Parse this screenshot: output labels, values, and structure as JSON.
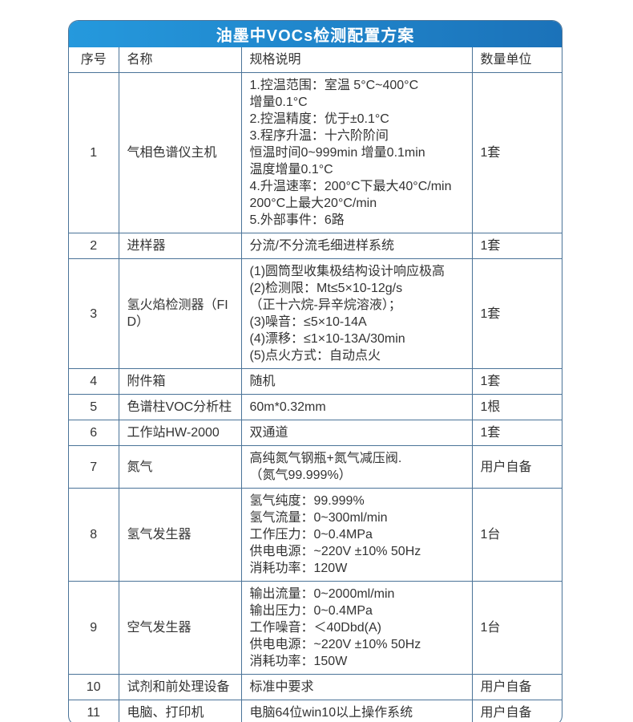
{
  "title": "油墨中VOCs检测配置方案",
  "columns": [
    "序号",
    "名称",
    "规格说明",
    "数量单位"
  ],
  "rows": [
    {
      "no": "1",
      "name": "气相色谱仪主机",
      "spec": [
        "1.控温范围：室温 5°C~400°C",
        "增量0.1°C",
        "2.控温精度：优于±0.1°C",
        "3.程序升温：十六阶阶间",
        "恒温时间0~999min 增量0.1min",
        "温度增量0.1°C",
        "4.升温速率：200°C下最大40°C/min",
        "200°C上最大20°C/min",
        "5.外部事件：6路"
      ],
      "qty": "1套"
    },
    {
      "no": "2",
      "name": "进样器",
      "spec": [
        "分流/不分流毛细进样系统"
      ],
      "qty": "1套"
    },
    {
      "no": "3",
      "name": "氢火焰检测器（FID）",
      "spec": [
        "(1)圆筒型收集极结构设计响应极高",
        "(2)检测限：Mt≤5×10-12g/s",
        "（正十六烷-异辛烷溶液）；",
        "(3)噪音：≤5×10-14A",
        "(4)漂移：≤1×10-13A/30min",
        "(5)点火方式：自动点火"
      ],
      "qty": "1套"
    },
    {
      "no": "4",
      "name": "附件箱",
      "spec": [
        "随机"
      ],
      "qty": "1套"
    },
    {
      "no": "5",
      "name": "色谱柱VOC分析柱",
      "spec": [
        "60m*0.32mm"
      ],
      "qty": "1根"
    },
    {
      "no": "6",
      "name": "工作站HW-2000",
      "spec": [
        "双通道"
      ],
      "qty": "1套"
    },
    {
      "no": "7",
      "name": "氮气",
      "spec": [
        "高纯氮气钢瓶+氮气减压阀.",
        "（氮气99.999%）"
      ],
      "qty": "用户自备"
    },
    {
      "no": "8",
      "name": "氢气发生器",
      "spec": [
        "氢气纯度：99.999%",
        "氢气流量：0~300ml/min",
        "工作压力：0~0.4MPa",
        "供电电源：~220V ±10% 50Hz",
        "消耗功率：120W"
      ],
      "qty": "1台"
    },
    {
      "no": "9",
      "name": "空气发生器",
      "spec": [
        "输出流量：0~2000ml/min",
        "输出压力：0~0.4MPa",
        "工作噪音：＜40Dbd(A)",
        "供电电源：~220V ±10% 50Hz",
        "消耗功率：150W"
      ],
      "qty": "1台"
    },
    {
      "no": "10",
      "name": "试剂和前处理设备",
      "spec": [
        "标准中要求"
      ],
      "qty": "用户自备"
    },
    {
      "no": "11",
      "name": "电脑、打印机",
      "spec": [
        "电脑64位win10以上操作系统"
      ],
      "qty": "用户自备"
    }
  ],
  "colors": {
    "title_gradient_start": "#2599dd",
    "title_gradient_end": "#1b72b9",
    "title_text": "#ffffff",
    "border": "#4a7398",
    "body_text": "#333333"
  }
}
